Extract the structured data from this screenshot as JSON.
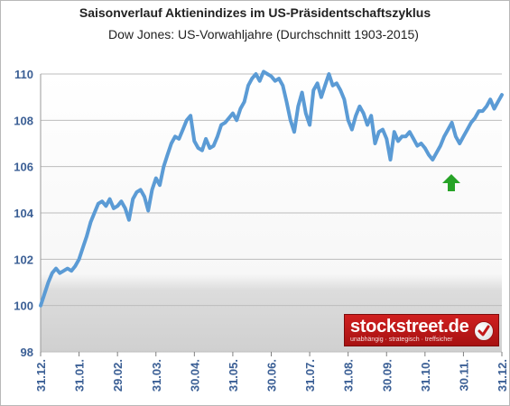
{
  "chart_data": {
    "type": "line",
    "title": "Saisonverlauf Aktienindizes im US-Präsidentschaftszyklus",
    "subtitle": "Dow Jones: US-Vorwahljahre  (Durchschnitt 1903-2015)",
    "xlabel": "",
    "ylabel": "",
    "ylim": [
      98,
      110
    ],
    "yticks": [
      98,
      100,
      102,
      104,
      106,
      108,
      110
    ],
    "xticks": [
      "31.12.",
      "31.01.",
      "29.02.",
      "31.03.",
      "30.04.",
      "31.05.",
      "30.06.",
      "31.07.",
      "31.08.",
      "30.09.",
      "31.10.",
      "30.11.",
      "31.12."
    ],
    "grid": true,
    "legend": "none",
    "line_color": "#5b9bd5",
    "x": [
      0,
      0.1,
      0.2,
      0.3,
      0.4,
      0.5,
      0.6,
      0.7,
      0.8,
      0.9,
      1,
      1.1,
      1.2,
      1.3,
      1.4,
      1.5,
      1.6,
      1.7,
      1.8,
      1.9,
      2,
      2.1,
      2.2,
      2.3,
      2.4,
      2.5,
      2.6,
      2.7,
      2.8,
      2.9,
      3,
      3.1,
      3.2,
      3.3,
      3.4,
      3.5,
      3.6,
      3.7,
      3.8,
      3.9,
      4,
      4.1,
      4.2,
      4.3,
      4.4,
      4.5,
      4.6,
      4.7,
      4.8,
      4.9,
      5,
      5.1,
      5.2,
      5.3,
      5.4,
      5.5,
      5.6,
      5.7,
      5.8,
      5.9,
      6,
      6.1,
      6.2,
      6.3,
      6.4,
      6.5,
      6.6,
      6.7,
      6.8,
      6.9,
      7,
      7.1,
      7.2,
      7.3,
      7.4,
      7.5,
      7.6,
      7.7,
      7.8,
      7.9,
      8,
      8.1,
      8.2,
      8.3,
      8.4,
      8.5,
      8.6,
      8.7,
      8.8,
      8.9,
      9,
      9.1,
      9.2,
      9.3,
      9.4,
      9.5,
      9.6,
      9.7,
      9.8,
      9.9,
      10,
      10.1,
      10.2,
      10.3,
      10.4,
      10.5,
      10.6,
      10.7,
      10.8,
      10.9,
      11,
      11.1,
      11.2,
      11.3,
      11.4,
      11.5,
      11.6,
      11.7,
      11.8,
      11.9,
      12
    ],
    "values": [
      100.0,
      100.5,
      101.0,
      101.4,
      101.6,
      101.4,
      101.5,
      101.6,
      101.5,
      101.7,
      102.0,
      102.5,
      103.0,
      103.6,
      104.0,
      104.4,
      104.5,
      104.3,
      104.6,
      104.2,
      104.3,
      104.5,
      104.2,
      103.7,
      104.6,
      104.9,
      105.0,
      104.7,
      104.1,
      105.0,
      105.5,
      105.2,
      106.0,
      106.5,
      107.0,
      107.3,
      107.2,
      107.6,
      108.0,
      108.2,
      107.1,
      106.8,
      106.7,
      107.2,
      106.8,
      106.9,
      107.3,
      107.8,
      107.9,
      108.1,
      108.3,
      108.0,
      108.5,
      108.8,
      109.5,
      109.8,
      110.0,
      109.7,
      110.1,
      110.0,
      109.9,
      109.7,
      109.8,
      109.5,
      108.8,
      108.0,
      107.5,
      108.6,
      109.2,
      108.3,
      107.8,
      109.3,
      109.6,
      109.0,
      109.5,
      110.0,
      109.5,
      109.6,
      109.3,
      108.9,
      108.0,
      107.6,
      108.2,
      108.6,
      108.3,
      107.8,
      108.2,
      107.0,
      107.5,
      107.6,
      107.2,
      106.3,
      107.5,
      107.1,
      107.3,
      107.3,
      107.5,
      107.2,
      106.9,
      107.0,
      106.8,
      106.5,
      106.3,
      106.6,
      106.9,
      107.3,
      107.6,
      107.9,
      107.3,
      107.0,
      107.3,
      107.6,
      107.9,
      108.1,
      108.4,
      108.4,
      108.6,
      108.9,
      108.5,
      108.8,
      109.1
    ],
    "annotations": [
      "green-up-arrow"
    ],
    "up_arrow_color": "#27a327"
  },
  "logo": {
    "text": "stockstreet.de",
    "tagline": "unabhängig · strategisch · treffsicher"
  }
}
